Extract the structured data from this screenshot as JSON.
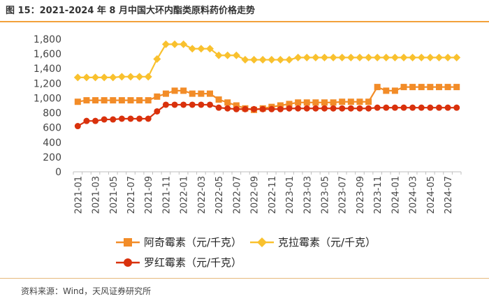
{
  "title": "图 15：2021-2024 年 8 月中国大环内酯类原料药价格走势",
  "source": "资料来源：Wind，天风证券研究所",
  "chart_data": {
    "type": "line",
    "title": "图 15：2021-2024 年 8 月中国大环内酯类原料药价格走势",
    "ylim": [
      0,
      1800
    ],
    "yticks": [
      "0",
      "200",
      "400",
      "600",
      "800",
      "1,000",
      "1,200",
      "1,400",
      "1,600",
      "1,800"
    ],
    "x": [
      "2021-01",
      "2021-02",
      "2021-03",
      "2021-04",
      "2021-05",
      "2021-06",
      "2021-07",
      "2021-08",
      "2021-09",
      "2021-10",
      "2021-11",
      "2021-12",
      "2022-01",
      "2022-02",
      "2022-03",
      "2022-04",
      "2022-05",
      "2022-06",
      "2022-07",
      "2022-08",
      "2022-09",
      "2022-10",
      "2022-11",
      "2022-12",
      "2023-01",
      "2023-02",
      "2023-03",
      "2023-04",
      "2023-05",
      "2023-06",
      "2023-07",
      "2023-08",
      "2023-09",
      "2023-10",
      "2023-11",
      "2023-12",
      "2024-01",
      "2024-02",
      "2024-03",
      "2024-04",
      "2024-05",
      "2024-06",
      "2024-07",
      "2024-08"
    ],
    "xtick_labels": [
      "2021-01",
      "2021-03",
      "2021-05",
      "2021-07",
      "2021-09",
      "2021-11",
      "2022-01",
      "2022-03",
      "2022-05",
      "2022-07",
      "2022-09",
      "2022-11",
      "2023-01",
      "2023-03",
      "2023-05",
      "2023-07",
      "2023-09",
      "2023-11",
      "2024-01",
      "2024-03",
      "2024-05",
      "2024-07"
    ],
    "series": [
      {
        "name": "阿奇霉素（元/千克）",
        "marker": "square",
        "color": "#f28c28",
        "values": [
          950,
          970,
          970,
          970,
          970,
          970,
          970,
          970,
          970,
          1020,
          1060,
          1100,
          1100,
          1060,
          1060,
          1060,
          980,
          940,
          900,
          860,
          840,
          860,
          880,
          900,
          920,
          940,
          940,
          940,
          940,
          940,
          950,
          950,
          950,
          950,
          1150,
          1100,
          1100,
          1150,
          1150,
          1150,
          1150,
          1150,
          1150,
          1150
        ]
      },
      {
        "name": "克拉霉素（元/千克）",
        "marker": "diamond",
        "color": "#f9c12e",
        "values": [
          1280,
          1280,
          1280,
          1280,
          1280,
          1290,
          1290,
          1290,
          1290,
          1530,
          1730,
          1730,
          1730,
          1670,
          1670,
          1670,
          1580,
          1580,
          1580,
          1520,
          1520,
          1520,
          1520,
          1520,
          1520,
          1550,
          1550,
          1550,
          1550,
          1550,
          1550,
          1550,
          1550,
          1550,
          1550,
          1550,
          1550,
          1550,
          1550,
          1550,
          1550,
          1550,
          1550,
          1550
        ]
      },
      {
        "name": "罗红霉素（元/千克）",
        "marker": "circle",
        "color": "#d9310c",
        "values": [
          620,
          690,
          690,
          710,
          710,
          720,
          720,
          720,
          720,
          820,
          910,
          910,
          910,
          910,
          910,
          910,
          870,
          860,
          850,
          850,
          850,
          850,
          850,
          850,
          860,
          860,
          860,
          860,
          860,
          860,
          860,
          860,
          860,
          860,
          870,
          870,
          870,
          870,
          870,
          870,
          870,
          870,
          870,
          870
        ]
      }
    ]
  }
}
